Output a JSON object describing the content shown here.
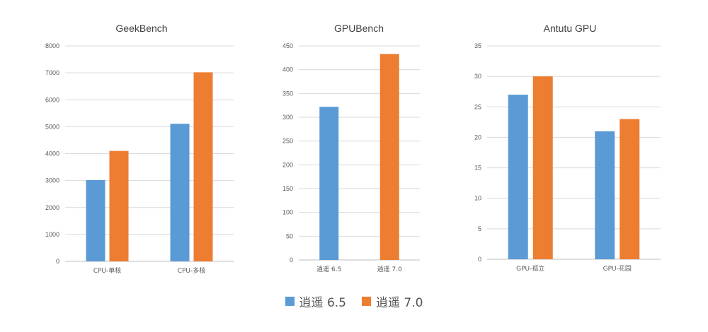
{
  "colors": {
    "series_1": "#5b9bd5",
    "series_2": "#ed7d31",
    "grid": "#d9d9d9",
    "text": "#595959"
  },
  "legend": [
    {
      "label": "逍遥 6.5",
      "color": "#5b9bd5"
    },
    {
      "label": "逍遥 7.0",
      "color": "#ed7d31"
    }
  ],
  "chart_data": [
    {
      "type": "bar",
      "title": "GeekBench",
      "categories": [
        "CPU-单核",
        "CPU-多核"
      ],
      "series": [
        {
          "name": "逍遥 6.5",
          "values": [
            3020,
            5110
          ]
        },
        {
          "name": "逍遥 7.0",
          "values": [
            4100,
            7020
          ]
        }
      ],
      "ylim": [
        0,
        8000
      ],
      "yticks": [
        0,
        1000,
        2000,
        3000,
        4000,
        5000,
        6000,
        7000,
        8000
      ],
      "grid": true,
      "legend_position": "bottom"
    },
    {
      "type": "bar",
      "title": "GPUBench",
      "categories": [
        "逍遥 6.5",
        "逍遥 7.0"
      ],
      "series": [
        {
          "name": "",
          "values": [
            322,
            433
          ],
          "colors": [
            "#5b9bd5",
            "#ed7d31"
          ]
        }
      ],
      "ylim": [
        0,
        450
      ],
      "yticks": [
        0,
        50,
        100,
        150,
        200,
        250,
        300,
        350,
        400,
        450
      ],
      "grid": true
    },
    {
      "type": "bar",
      "title": "Antutu GPU",
      "categories": [
        "GPU-孤立",
        "GPU-花园"
      ],
      "series": [
        {
          "name": "逍遥 6.5",
          "values": [
            27,
            21
          ]
        },
        {
          "name": "逍遥 7.0",
          "values": [
            30,
            23
          ]
        }
      ],
      "ylim": [
        0,
        35
      ],
      "yticks": [
        0,
        5,
        10,
        15,
        20,
        25,
        30,
        35
      ],
      "grid": true,
      "legend_position": "bottom"
    }
  ]
}
